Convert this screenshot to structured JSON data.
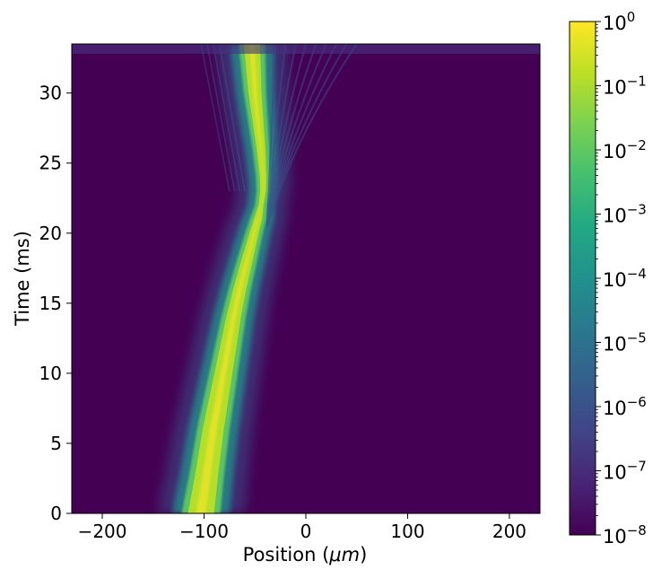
{
  "chart_data": {
    "type": "heatmap",
    "title": "",
    "xlabel_prefix": "Position (",
    "xlabel_unit": "μm",
    "xlabel_suffix": ")",
    "ylabel": "Time (ms)",
    "xlim": [
      -230,
      230
    ],
    "ylim": [
      0,
      33.5
    ],
    "xticks": [
      -200,
      -100,
      0,
      100,
      200
    ],
    "xtick_labels": [
      "−200",
      "−100",
      "0",
      "100",
      "200"
    ],
    "yticks": [
      0,
      5,
      10,
      15,
      20,
      25,
      30
    ],
    "ytick_labels": [
      "0",
      "5",
      "10",
      "15",
      "20",
      "25",
      "30"
    ],
    "colorbar": {
      "scale": "log",
      "range": [
        1e-08,
        1
      ],
      "tick_exponents": [
        0,
        -1,
        -2,
        -3,
        -4,
        -5,
        -6,
        -7,
        -8
      ],
      "tick_base": "10",
      "tick_exp_labels": [
        "0",
        "−1",
        "−2",
        "−3",
        "−4",
        "−5",
        "−6",
        "−7",
        "−8"
      ],
      "colormap": "viridis"
    },
    "description_note": "",
    "beam_path": {
      "center_um": [
        [
          0,
          -103
        ],
        [
          2,
          -99
        ],
        [
          4,
          -95
        ],
        [
          6,
          -91
        ],
        [
          8,
          -86
        ],
        [
          10,
          -81
        ],
        [
          12,
          -76
        ],
        [
          14,
          -71
        ],
        [
          16,
          -65
        ],
        [
          18,
          -58
        ],
        [
          20,
          -51
        ],
        [
          21,
          -47
        ],
        [
          22,
          -44
        ],
        [
          23,
          -42
        ],
        [
          24,
          -42
        ],
        [
          26,
          -44
        ],
        [
          28,
          -47
        ],
        [
          30,
          -50
        ],
        [
          33.5,
          -53
        ]
      ],
      "halfwidth_um": [
        [
          0,
          16
        ],
        [
          3,
          14
        ],
        [
          6,
          13
        ],
        [
          10,
          11
        ],
        [
          14,
          9
        ],
        [
          18,
          7
        ],
        [
          21,
          5
        ],
        [
          22,
          3
        ],
        [
          24,
          4
        ],
        [
          27,
          6
        ],
        [
          30,
          8
        ],
        [
          33.5,
          10
        ]
      ]
    },
    "colors": {
      "background": "#440154",
      "peak": "#fde725",
      "core": "#b5de2b"
    }
  }
}
